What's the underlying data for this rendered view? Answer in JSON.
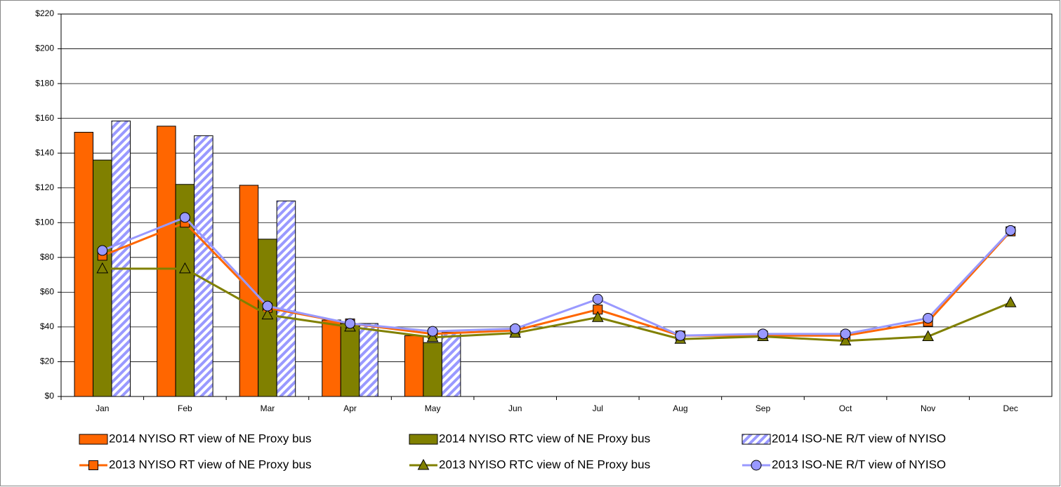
{
  "chart_data": {
    "type": "bar",
    "categories": [
      "Jan",
      "Feb",
      "Mar",
      "Apr",
      "May",
      "Jun",
      "Jul",
      "Aug",
      "Sep",
      "Oct",
      "Nov",
      "Dec"
    ],
    "ylim": [
      0,
      220
    ],
    "yticks": [
      {
        "value": 0,
        "label": "$0"
      },
      {
        "value": 20,
        "label": "$20"
      },
      {
        "value": 40,
        "label": "$40"
      },
      {
        "value": 60,
        "label": "$60"
      },
      {
        "value": 80,
        "label": "$80"
      },
      {
        "value": 100,
        "label": "$100"
      },
      {
        "value": 120,
        "label": "$120"
      },
      {
        "value": 140,
        "label": "$140"
      },
      {
        "value": 160,
        "label": "$160"
      },
      {
        "value": 180,
        "label": "$180"
      },
      {
        "value": 200,
        "label": "$200"
      },
      {
        "value": 220,
        "label": "$220"
      }
    ],
    "grid": true,
    "series": [
      {
        "name": "2014 NYISO RT view of NE Proxy bus",
        "type": "bar",
        "color": "#ff6600",
        "values": [
          152,
          155.5,
          121.5,
          44,
          35,
          null,
          null,
          null,
          null,
          null,
          null,
          null
        ]
      },
      {
        "name": "2014 NYISO RTC view of NE Proxy bus",
        "type": "bar",
        "color": "#808000",
        "values": [
          136,
          122,
          90.5,
          42,
          31,
          null,
          null,
          null,
          null,
          null,
          null,
          null
        ]
      },
      {
        "name": "2014 ISO-NE R/T view of NYISO",
        "type": "bar",
        "color": "#9999ff",
        "hatched": true,
        "values": [
          158.5,
          150,
          112.5,
          42,
          37,
          null,
          null,
          null,
          null,
          null,
          null,
          null
        ]
      },
      {
        "name": "2013 NYISO RT view of NE Proxy bus",
        "type": "line",
        "marker": "square",
        "color": "#ff6600",
        "values": [
          81,
          100,
          51,
          42,
          36,
          38,
          50,
          35,
          35,
          35,
          43,
          95
        ]
      },
      {
        "name": "2013 NYISO RTC view of NE Proxy bus",
        "type": "line",
        "marker": "triangle",
        "color": "#808000",
        "values": [
          73.5,
          73.5,
          47,
          40,
          34,
          36.5,
          45.5,
          33,
          34.5,
          32,
          34.5,
          54
        ]
      },
      {
        "name": "2013 ISO-NE R/T view of NYISO",
        "type": "line",
        "marker": "circle",
        "color": "#9999ff",
        "values": [
          84,
          103,
          52,
          42,
          37.5,
          39,
          56,
          35,
          36,
          36,
          45,
          95.5
        ]
      }
    ]
  }
}
